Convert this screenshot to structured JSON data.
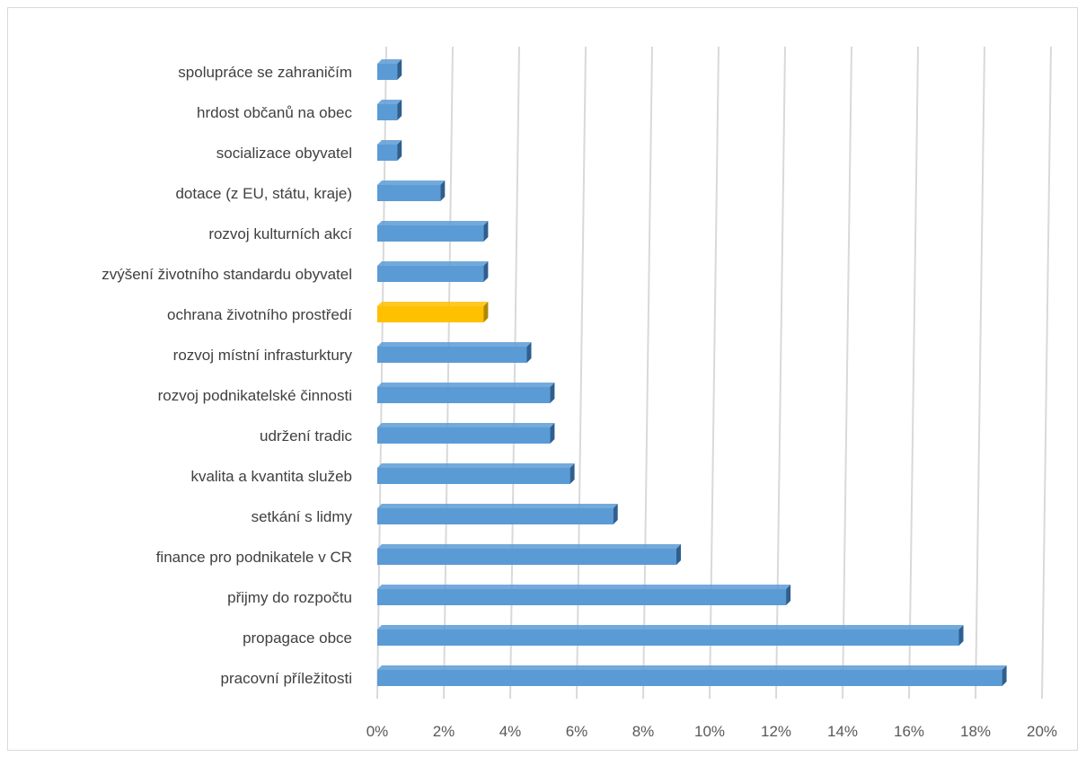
{
  "chart_data": {
    "type": "bar",
    "orientation": "horizontal",
    "categories": [
      "spolupráce se zahraničím",
      "hrdost občanů na obec",
      "socializace obyvatel",
      "dotace (z EU, státu, kraje)",
      "rozvoj kulturních akcí",
      "zvýšení životního standardu obyvatel",
      "ochrana životního prostředí",
      "rozvoj místní infrasturktury",
      "rozvoj podnikatelské činnosti",
      "udržení tradic",
      "kvalita a kvantita služeb",
      "setkání s lidmy",
      "finance pro podnikatele v CR",
      "přijmy do rozpočtu",
      "propagace obce",
      "pracovní příležitosti"
    ],
    "values": [
      0.6,
      0.6,
      0.6,
      1.9,
      3.2,
      3.2,
      3.2,
      4.5,
      5.2,
      5.2,
      5.8,
      7.1,
      9.0,
      12.3,
      17.5,
      18.8
    ],
    "highlight_index": 6,
    "colors": {
      "bar": "#5b9bd5",
      "bar_side": "#2e5f8f",
      "highlight": "#ffc000",
      "highlight_side": "#b28700",
      "grid": "#d9d9d9"
    },
    "xlim": [
      0,
      20
    ],
    "xticks": [
      "0%",
      "2%",
      "4%",
      "6%",
      "8%",
      "10%",
      "12%",
      "14%",
      "16%",
      "18%",
      "20%"
    ],
    "grid": true,
    "title": "",
    "xlabel": "",
    "ylabel": ""
  }
}
